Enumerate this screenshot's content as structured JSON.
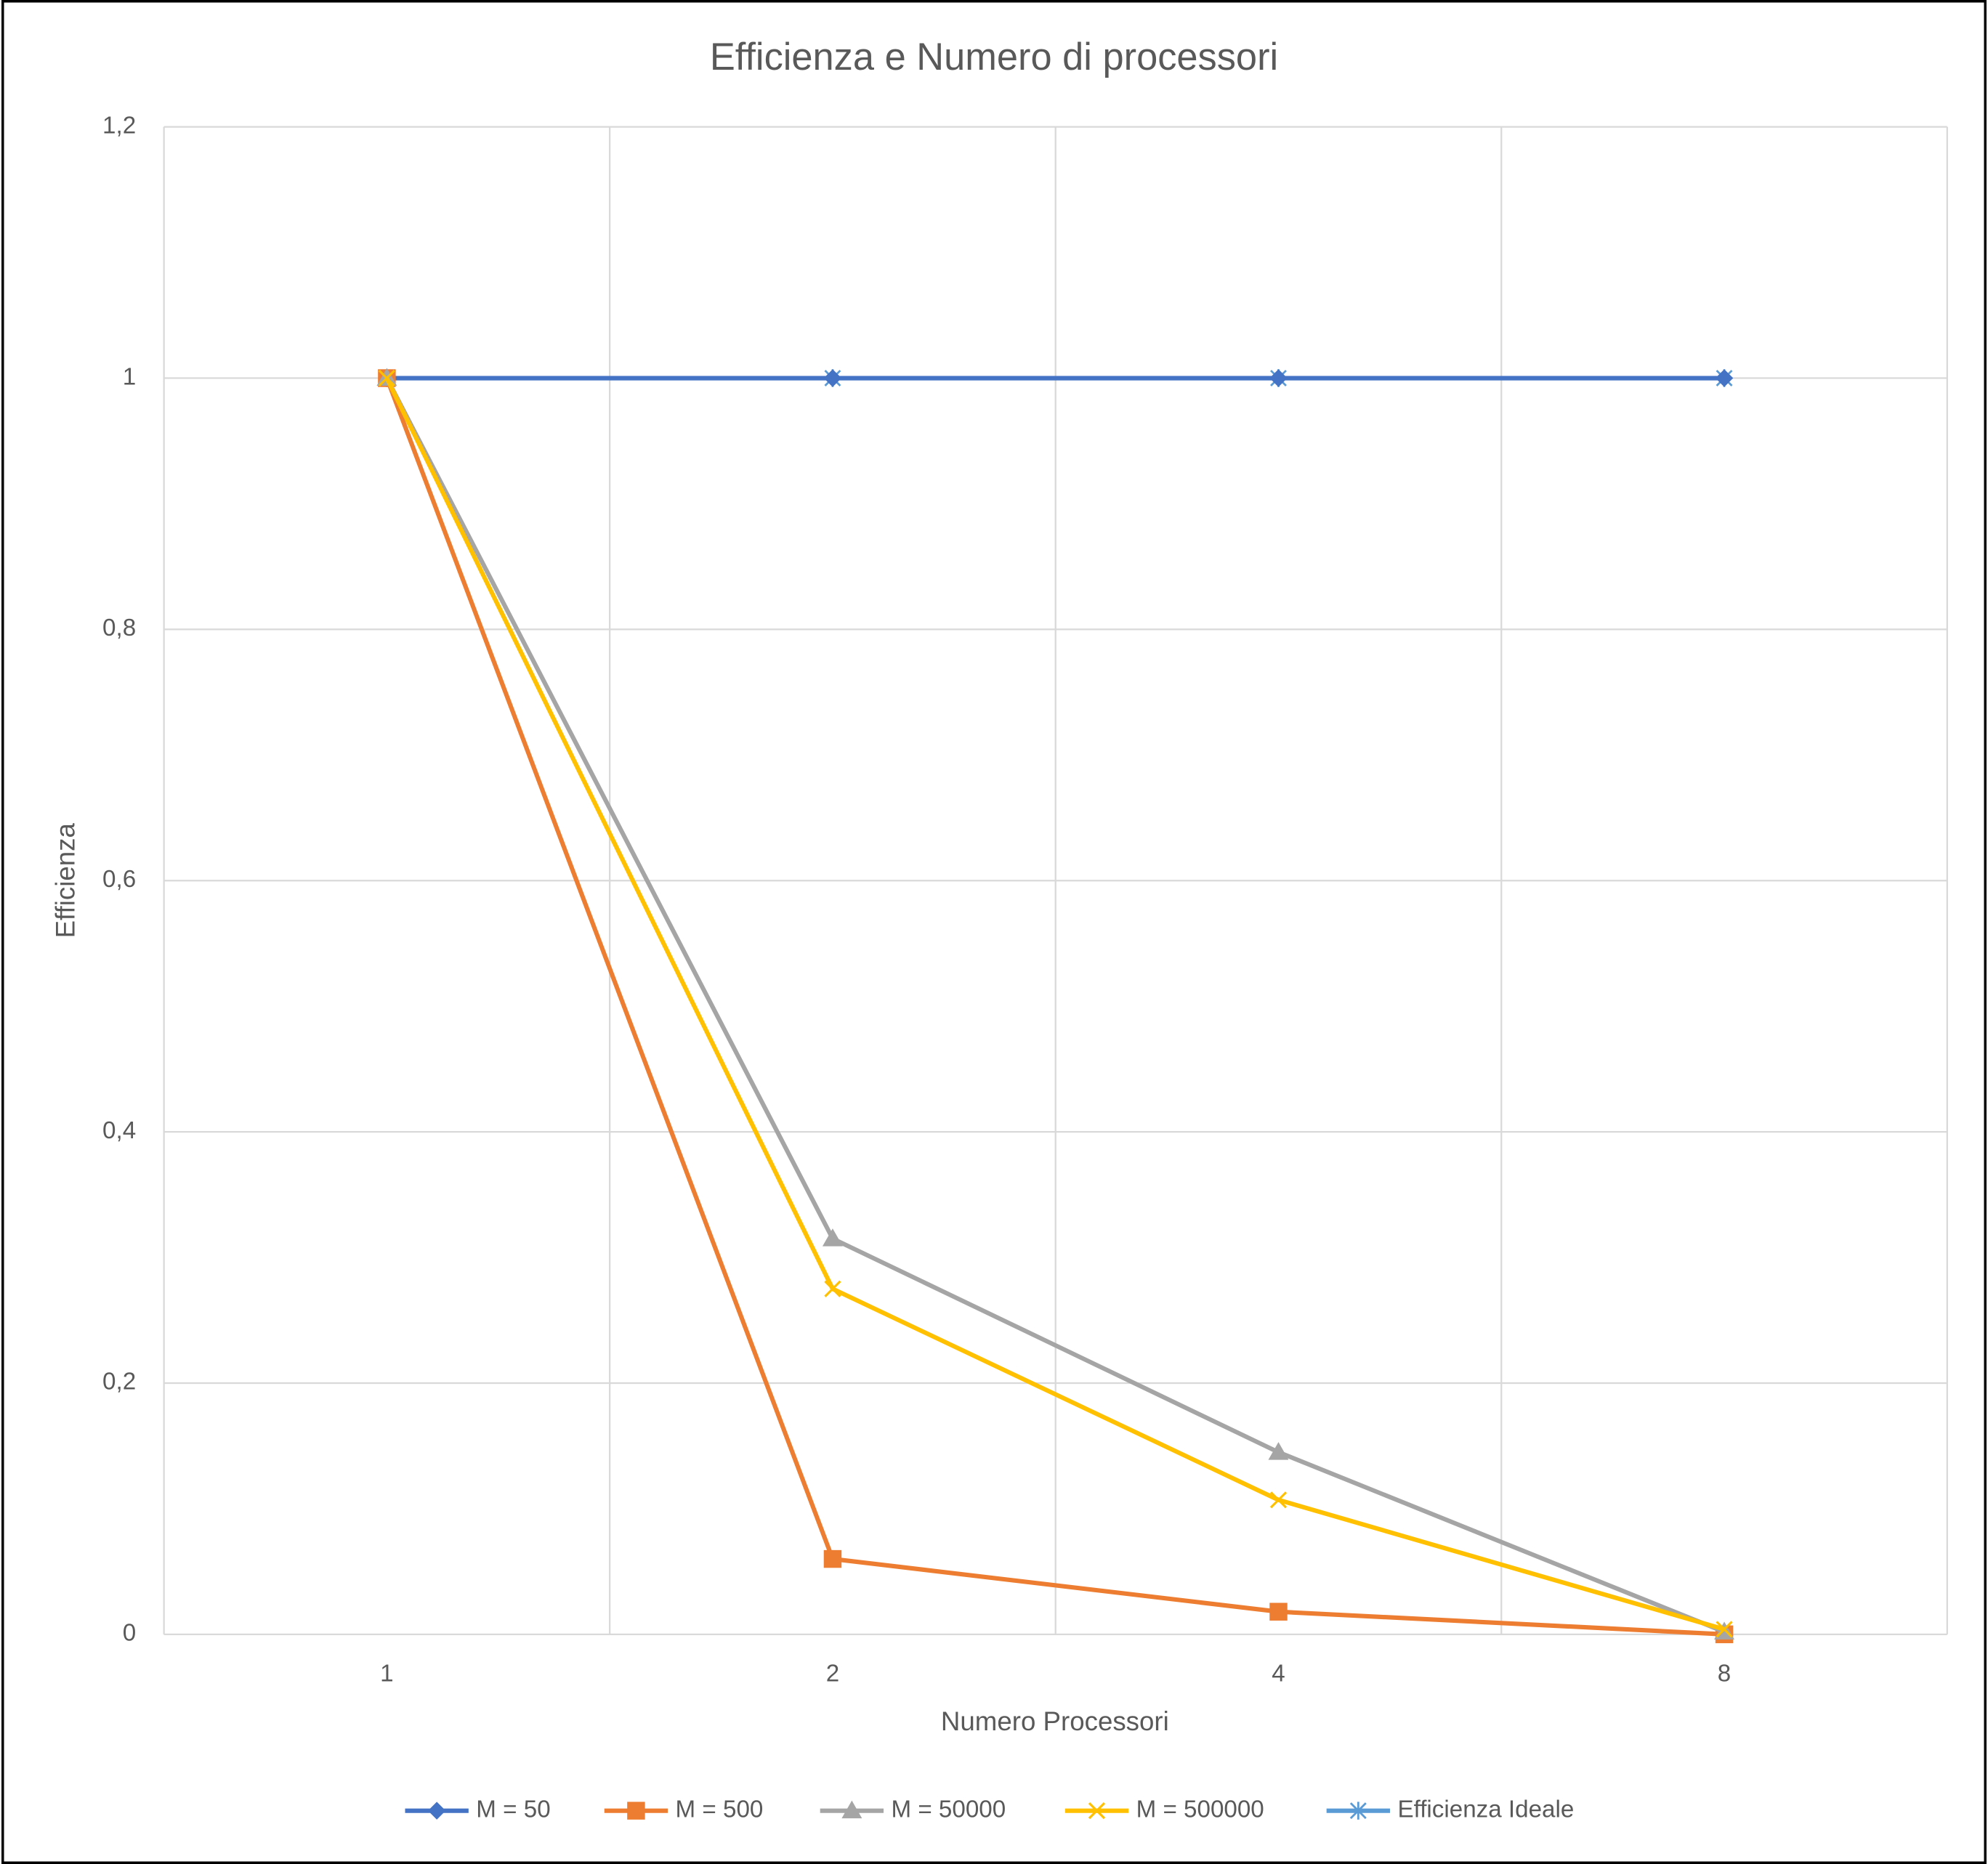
{
  "chart_data": {
    "type": "line",
    "title": "Efficienza e Numero di processori",
    "x_label": "Numero Processori",
    "y_label": "Efficienza",
    "categories": [
      "1",
      "2",
      "4",
      "8"
    ],
    "ylim": [
      0,
      1.2
    ],
    "yticks": [
      0,
      {
        "value": 0.2,
        "label": "0,2"
      },
      {
        "value": 0.4,
        "label": "0,4"
      },
      {
        "value": 0.6,
        "label": "0,6"
      },
      {
        "value": 0.8,
        "label": "0,8"
      },
      1,
      {
        "value": 1.2,
        "label": "1,2"
      }
    ],
    "grid": true,
    "legend": "bottom",
    "series": [
      {
        "name": "M = 50",
        "color": "#4472c4",
        "marker": "diamond",
        "values": [
          1,
          1,
          1,
          1
        ]
      },
      {
        "name": "M = 500",
        "color": "#ed7d31",
        "marker": "square",
        "values": [
          1,
          0.06,
          0.018,
          0.0
        ]
      },
      {
        "name": "M = 50000",
        "color": "#a5a5a5",
        "marker": "triangle",
        "values": [
          1,
          0.315,
          0.145,
          0.002
        ]
      },
      {
        "name": "M = 500000",
        "color": "#ffc000",
        "marker": "x",
        "values": [
          1,
          0.275,
          0.107,
          0.004
        ]
      },
      {
        "name": "Efficienza Ideale",
        "color": "#5b9bd5",
        "marker": "star",
        "values": [
          1,
          1,
          1,
          1
        ]
      }
    ]
  }
}
